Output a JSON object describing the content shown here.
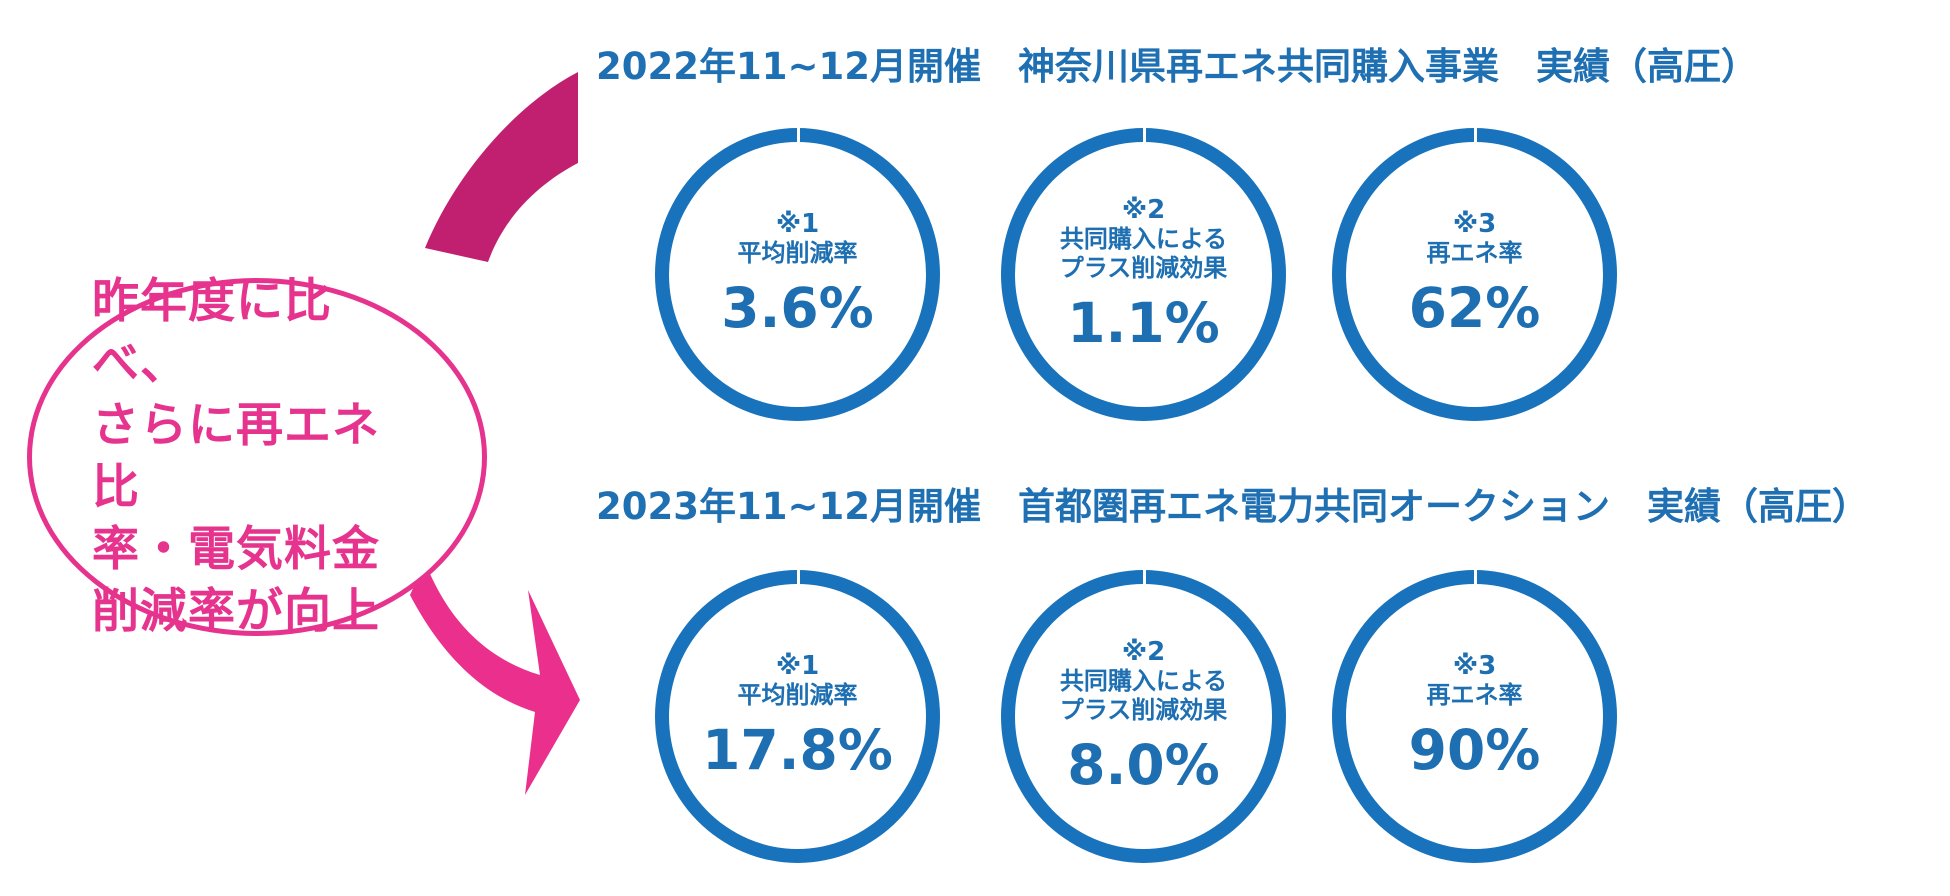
{
  "bubble": {
    "text": "昨年度に比べ、\nさらに再エネ比\n率・電気料金\n削減率が向上"
  },
  "sections": [
    {
      "title": "2022年11~12月開催　神奈川県再エネ共同購入事業　実績（高圧）",
      "metrics": [
        {
          "note": "※1",
          "label": "平均削減率",
          "value": "3.6%"
        },
        {
          "note": "※2",
          "label": "共同購入による\nプラス削減効果",
          "value": "1.1%"
        },
        {
          "note": "※3",
          "label": "再エネ率",
          "value": "62%"
        }
      ]
    },
    {
      "title": "2023年11~12月開催　首都圏再エネ電力共同オークション　実績（高圧）",
      "metrics": [
        {
          "note": "※1",
          "label": "平均削減率",
          "value": "17.8%"
        },
        {
          "note": "※2",
          "label": "共同購入による\nプラス削減効果",
          "value": "8.0%"
        },
        {
          "note": "※3",
          "label": "再エネ率",
          "value": "90%"
        }
      ]
    }
  ],
  "colors": {
    "accent_pink": "#e6338d",
    "arrow_top": "#c0206f",
    "ring_blue": "#1873bc",
    "text_blue": "#1f6fb3"
  }
}
